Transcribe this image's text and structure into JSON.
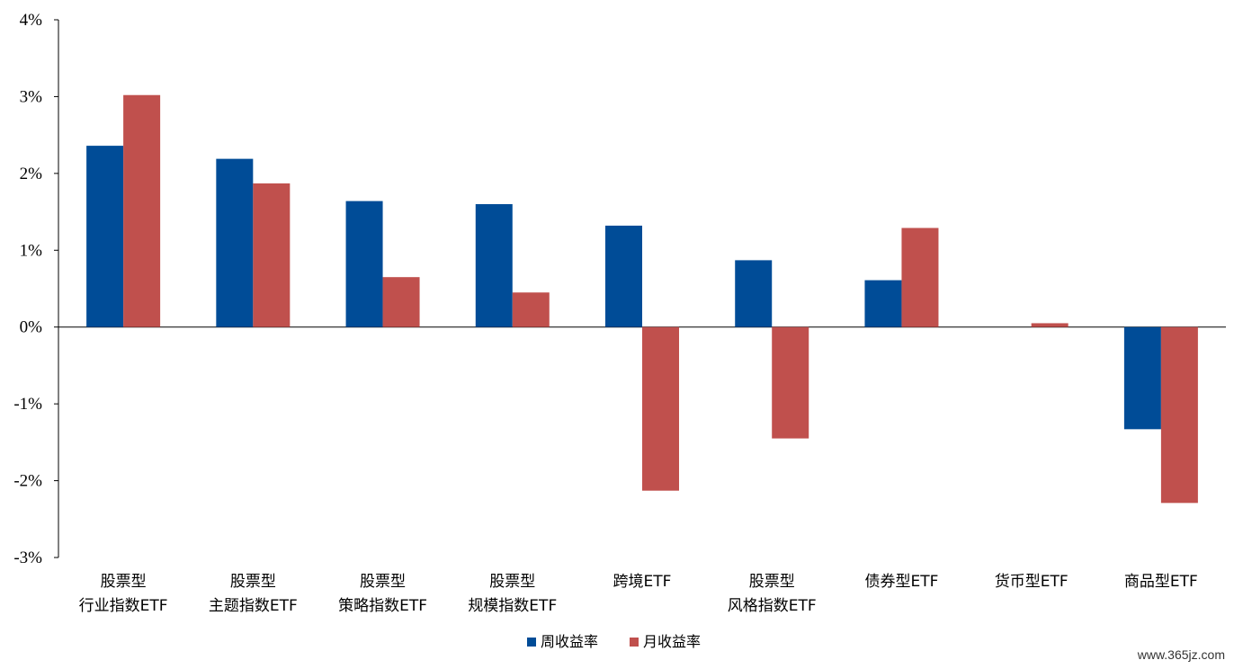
{
  "chart_data": {
    "type": "bar",
    "categories": [
      [
        "股票型",
        "行业指数ETF"
      ],
      [
        "股票型",
        "主题指数ETF"
      ],
      [
        "股票型",
        "策略指数ETF"
      ],
      [
        "股票型",
        "规模指数ETF"
      ],
      [
        "跨境ETF"
      ],
      [
        "股票型",
        "风格指数ETF"
      ],
      [
        "债券型ETF"
      ],
      [
        "货币型ETF"
      ],
      [
        "商品型ETF"
      ]
    ],
    "series": [
      {
        "name": "周收益率",
        "color": "#004C97",
        "values": [
          2.36,
          2.19,
          1.64,
          1.6,
          1.32,
          0.87,
          0.61,
          0.0,
          -1.33
        ]
      },
      {
        "name": "月收益率",
        "color": "#C0504D",
        "values": [
          3.02,
          1.87,
          0.65,
          0.45,
          -2.13,
          -1.45,
          1.29,
          0.05,
          -2.29
        ]
      }
    ],
    "ylim": [
      -3,
      4
    ],
    "yticks": [
      "4%",
      "3%",
      "2%",
      "1%",
      "0%",
      "-1%",
      "-2%",
      "-3%"
    ],
    "legend_position": "bottom-center",
    "grid": false
  },
  "watermark": "www.365jz.com"
}
